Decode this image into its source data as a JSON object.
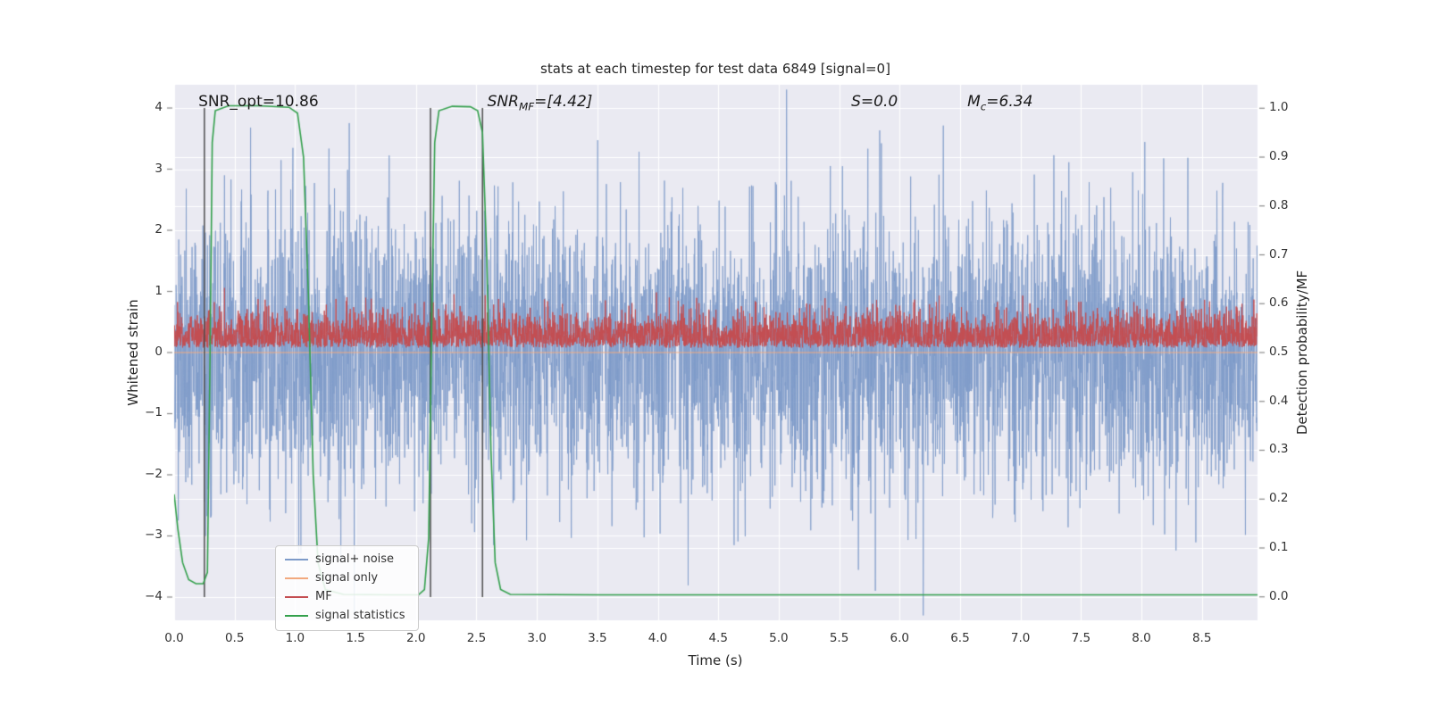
{
  "chart_data": {
    "type": "line",
    "title": "stats at each timestep for test data 6849 [signal=0]",
    "xlabel": "Time (s)",
    "ylabel_left": "Whitened strain",
    "ylabel_right": "Detection probability/MF",
    "xlim": [
      0,
      8.96
    ],
    "ylim_left": [
      -4.38,
      4.38
    ],
    "ylim_right": [
      -0.048,
      1.048
    ],
    "grid": true,
    "legend_position": "lower left",
    "x_ticks": [
      0.0,
      0.5,
      1.0,
      1.5,
      2.0,
      2.5,
      3.0,
      3.5,
      4.0,
      4.5,
      5.0,
      5.5,
      6.0,
      6.5,
      7.0,
      7.5,
      8.0,
      8.5
    ],
    "x_tick_labels": [
      "0.0",
      "0.5",
      "1.0",
      "1.5",
      "2.0",
      "2.5",
      "3.0",
      "3.5",
      "4.0",
      "4.5",
      "5.0",
      "5.5",
      "6.0",
      "6.5",
      "7.0",
      "7.5",
      "8.0",
      "8.5"
    ],
    "y_ticks_left": [
      -4,
      -3,
      -2,
      -1,
      0,
      1,
      2,
      3,
      4
    ],
    "y_tick_labels_left": [
      "−4",
      "−3",
      "−2",
      "−1",
      "0",
      "1",
      "2",
      "3",
      "4"
    ],
    "y_ticks_right": [
      0.0,
      0.1,
      0.2,
      0.3,
      0.4,
      0.5,
      0.6,
      0.7,
      0.8,
      0.9,
      1.0
    ],
    "y_tick_labels_right": [
      "0.0",
      "0.1",
      "0.2",
      "0.3",
      "0.4",
      "0.5",
      "0.6",
      "0.7",
      "0.8",
      "0.9",
      "1.0"
    ],
    "colors": {
      "plot_bg": "#eaeaf2",
      "grid": "#ffffff",
      "text": "#262626",
      "tick_mark": "#8a8a8a",
      "vline": "#4d4d4d"
    },
    "annotations": {
      "snr_opt": {
        "label": "SNR_opt=10.86",
        "x": 0.2,
        "y": 4.25
      },
      "snr_mf": {
        "pre": "SNR",
        "sub": "MF",
        "post": "=[4.42]",
        "x": 2.59,
        "y": 4.25
      },
      "s": {
        "pre": "S",
        "sub": "",
        "post": "=0.0",
        "x": 5.6,
        "y": 4.25
      },
      "mc": {
        "pre": "M",
        "sub": "c",
        "post": "=6.34",
        "x": 6.56,
        "y": 4.25
      }
    },
    "vlines": {
      "x": [
        0.25,
        2.12,
        2.55
      ],
      "color": "#4d4d4d"
    },
    "series": [
      {
        "name": "signal+ noise",
        "color": "#7e9bc9",
        "axis": "left",
        "kind": "noise",
        "mean": 0,
        "std": 1.15,
        "n": 4480,
        "clip": [
          -4.3,
          4.3
        ],
        "seed": 1337
      },
      {
        "name": "signal only",
        "color": "#f2a97e",
        "axis": "left",
        "kind": "flat",
        "value": 0
      },
      {
        "name": "MF",
        "color": "#c44e52",
        "axis": "left",
        "kind": "halfnoise",
        "base": 0.08,
        "scale": 0.28,
        "n": 4480,
        "clip": [
          0.05,
          1.06
        ],
        "seed": 777
      },
      {
        "name": "signal statistics",
        "color": "#33a04c",
        "axis": "right",
        "kind": "path",
        "points": [
          [
            0.0,
            0.21
          ],
          [
            0.03,
            0.14
          ],
          [
            0.07,
            0.07
          ],
          [
            0.12,
            0.035
          ],
          [
            0.18,
            0.027
          ],
          [
            0.24,
            0.027
          ],
          [
            0.275,
            0.05
          ],
          [
            0.295,
            0.45
          ],
          [
            0.315,
            0.93
          ],
          [
            0.34,
            0.995
          ],
          [
            0.45,
            1.005
          ],
          [
            0.7,
            1.005
          ],
          [
            0.95,
            1.002
          ],
          [
            1.02,
            0.99
          ],
          [
            1.07,
            0.9
          ],
          [
            1.11,
            0.62
          ],
          [
            1.15,
            0.25
          ],
          [
            1.19,
            0.07
          ],
          [
            1.25,
            0.015
          ],
          [
            1.4,
            0.005
          ],
          [
            1.8,
            0.004
          ],
          [
            2.02,
            0.004
          ],
          [
            2.07,
            0.015
          ],
          [
            2.105,
            0.12
          ],
          [
            2.13,
            0.55
          ],
          [
            2.155,
            0.93
          ],
          [
            2.19,
            0.995
          ],
          [
            2.3,
            1.004
          ],
          [
            2.45,
            1.003
          ],
          [
            2.51,
            0.995
          ],
          [
            2.55,
            0.95
          ],
          [
            2.585,
            0.7
          ],
          [
            2.62,
            0.3
          ],
          [
            2.655,
            0.07
          ],
          [
            2.7,
            0.015
          ],
          [
            2.78,
            0.005
          ],
          [
            3.5,
            0.004
          ],
          [
            5.0,
            0.004
          ],
          [
            7.0,
            0.004
          ],
          [
            8.96,
            0.004
          ]
        ]
      }
    ]
  }
}
